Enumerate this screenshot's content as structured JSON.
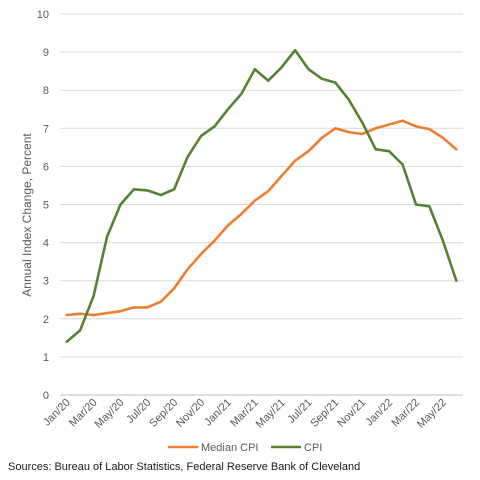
{
  "chart_data": {
    "type": "line",
    "title": "",
    "xlabel": "",
    "ylabel": "Annual Index Change, Percent",
    "ylim": [
      0,
      10
    ],
    "y_ticks": [
      0,
      1,
      2,
      3,
      4,
      5,
      6,
      7,
      8,
      9,
      10
    ],
    "grid": true,
    "legend_position": "bottom",
    "categories": [
      "Jan/20",
      "Feb/20",
      "Mar/20",
      "Apr/20",
      "May/20",
      "Jun/20",
      "Jul/20",
      "Aug/20",
      "Sep/20",
      "Oct/20",
      "Nov/20",
      "Dec/20",
      "Jan/21",
      "Feb/21",
      "Mar/21",
      "Apr/21",
      "May/21",
      "Jun/21",
      "Jul/21",
      "Aug/21",
      "Sep/21",
      "Oct/21",
      "Nov/21",
      "Dec/21",
      "Jan/22",
      "Feb/22",
      "Mar/22",
      "Apr/22",
      "May/22",
      "Jun/22"
    ],
    "x_tick_labels": [
      "Jan/20",
      "Mar/20",
      "May/20",
      "Jul/20",
      "Sep/20",
      "Nov/20",
      "Jan/21",
      "Mar/21",
      "May/21",
      "Jul/21",
      "Sep/21",
      "Nov/21",
      "Jan/22",
      "Mar/22",
      "May/22"
    ],
    "series": [
      {
        "name": "Median CPI",
        "color": "#ED7D31",
        "values": [
          2.1,
          2.13,
          2.1,
          2.15,
          2.2,
          2.3,
          2.3,
          2.45,
          2.8,
          3.3,
          3.7,
          4.05,
          4.45,
          4.75,
          5.1,
          5.35,
          5.75,
          6.15,
          6.4,
          6.75,
          7.0,
          6.9,
          6.85,
          7.0,
          7.1,
          7.2,
          7.05,
          6.98,
          6.75,
          6.45
        ]
      },
      {
        "name": "CPI",
        "color": "#548235",
        "values": [
          1.4,
          1.7,
          2.6,
          4.15,
          5.0,
          5.4,
          5.37,
          5.25,
          5.4,
          6.25,
          6.8,
          7.05,
          7.5,
          7.9,
          8.55,
          8.25,
          8.6,
          9.05,
          8.55,
          8.3,
          8.2,
          7.75,
          7.15,
          6.45,
          6.4,
          6.05,
          5.0,
          4.95,
          4.05,
          3.0
        ]
      }
    ]
  },
  "source_text": "Sources: Bureau of Labor Statistics, Federal Reserve Bank of Cleveland"
}
